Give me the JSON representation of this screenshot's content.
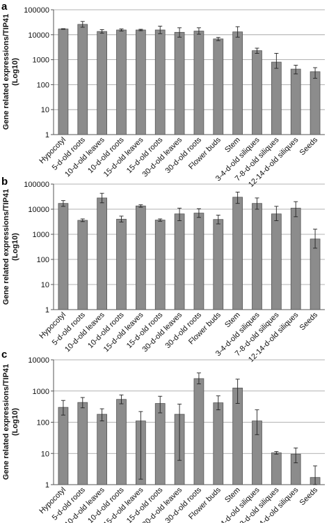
{
  "chart_data": [
    {
      "type": "bar",
      "panel_label": "a",
      "ylabel_line1": "Gene related expressions/TIP41",
      "ylabel_line2": "(Log10)",
      "ylog": true,
      "ylim": [
        1,
        100000
      ],
      "yticks": [
        "1",
        "10",
        "100",
        "1000",
        "10000",
        "100000"
      ],
      "categories": [
        "Hypocotyl",
        "5-d-old roots",
        "10-d-old leaves",
        "10-d-old roots",
        "15-d-old leaves",
        "15-d-old roots",
        "30-d-old leaves",
        "30-d-old roots",
        "Flower buds",
        "Stem",
        "3-4-d-old siliques",
        "7-8-d-old siliques",
        "12-14-d-old siliques",
        "Seeds"
      ],
      "values": [
        17000,
        26000,
        13500,
        15500,
        15500,
        15500,
        12500,
        14000,
        6800,
        13000,
        2300,
        800,
        420,
        330
      ],
      "err_low": [
        16500,
        20000,
        11500,
        14000,
        14500,
        11000,
        8000,
        10500,
        5800,
        8000,
        1800,
        450,
        270,
        180
      ],
      "err_high": [
        17500,
        34000,
        16000,
        17000,
        16500,
        22000,
        19000,
        19000,
        7800,
        21000,
        2900,
        1800,
        600,
        480
      ]
    },
    {
      "type": "bar",
      "panel_label": "b",
      "ylabel_line1": "Gene related expressions/TIP41",
      "ylabel_line2": "(Log10)",
      "ylog": true,
      "ylim": [
        1,
        100000
      ],
      "yticks": [
        "1",
        "10",
        "100",
        "1000",
        "10000",
        "100000"
      ],
      "categories": [
        "Hypocotyl",
        "5-d-old roots",
        "10-d-old leaves",
        "10-d-old roots",
        "15-d-old leaves",
        "15-d-old roots",
        "30-d-old leaves",
        "30-d-old roots",
        "Flower buds",
        "Stem",
        "3-4-d-old siliques",
        "7-8-d-old siliques",
        "12-14-d-old siliques",
        "Seeds"
      ],
      "values": [
        17000,
        3600,
        28000,
        4000,
        13500,
        3700,
        6500,
        7000,
        3900,
        30000,
        17000,
        6500,
        11000,
        650
      ],
      "err_low": [
        13000,
        3200,
        18000,
        3100,
        12000,
        3300,
        3500,
        4700,
        2600,
        17000,
        10000,
        3500,
        5000,
        280
      ],
      "err_high": [
        22000,
        4100,
        43000,
        5300,
        15000,
        4100,
        11000,
        10500,
        5800,
        48000,
        28000,
        13000,
        20000,
        1600
      ]
    },
    {
      "type": "bar",
      "panel_label": "c",
      "ylabel_line1": "Gene related expressions/TIP41",
      "ylabel_line2": "(Log10)",
      "ylog": true,
      "ylim": [
        1,
        10000
      ],
      "yticks": [
        "1",
        "10",
        "100",
        "1000",
        "10000"
      ],
      "categories": [
        "Hypocotyl",
        "5-d-old roots",
        "10-d-old leaves",
        "10-d-old roots",
        "15-d-old leaves",
        "15-d-old roots",
        "30-d-old leaves",
        "30-d-old roots",
        "Flower buds",
        "Stem",
        "3-4-d-old siliques",
        "7-8-d-old siliques",
        "12-14-d-old siliques",
        "Seeds"
      ],
      "values": [
        300,
        430,
        180,
        540,
        110,
        400,
        180,
        2500,
        420,
        1250,
        110,
        10.5,
        9.5,
        1.7
      ],
      "err_low": [
        170,
        290,
        110,
        390,
        1.5,
        200,
        6,
        1700,
        250,
        400,
        40,
        9.5,
        5,
        1
      ],
      "err_high": [
        500,
        620,
        270,
        750,
        220,
        680,
        380,
        3800,
        700,
        2400,
        250,
        11.5,
        15,
        4
      ]
    }
  ]
}
